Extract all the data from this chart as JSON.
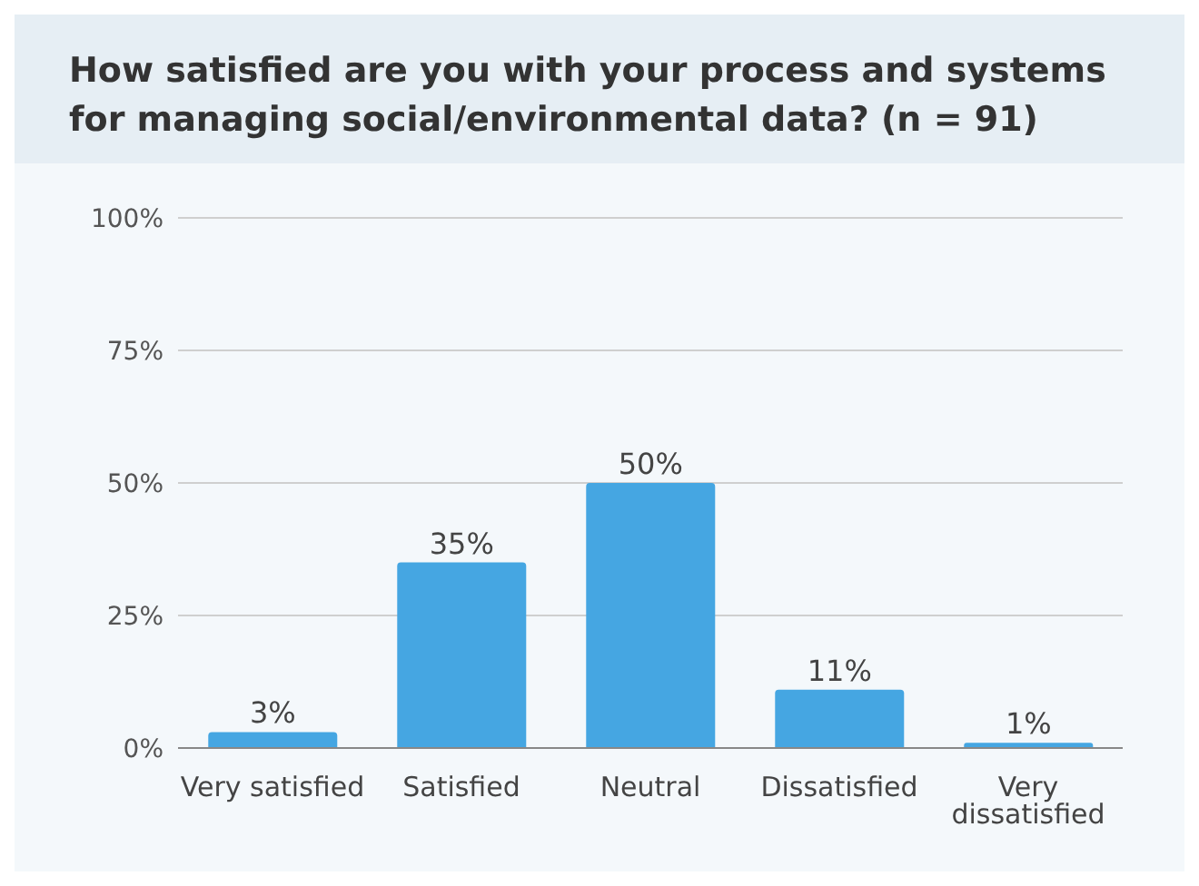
{
  "chart_data": {
    "type": "bar",
    "title": "How satisfied are you with your process and systems for managing social/environmental data? (n = 91)",
    "categories": [
      "Very satisfied",
      "Satisfied",
      "Neutral",
      "Dissatisfied",
      "Very dissatisfied"
    ],
    "values": [
      3,
      35,
      50,
      11,
      1
    ],
    "value_labels": [
      "3%",
      "35%",
      "50%",
      "11%",
      "1%"
    ],
    "color": "#45a6e2",
    "ylim": [
      0,
      100
    ],
    "yticks": [
      {
        "value": 0,
        "label": "0%"
      },
      {
        "value": 25,
        "label": "25%"
      },
      {
        "value": 50,
        "label": "50%"
      },
      {
        "value": 75,
        "label": "75%"
      },
      {
        "value": 100,
        "label": "100%"
      }
    ],
    "grid": "y"
  }
}
